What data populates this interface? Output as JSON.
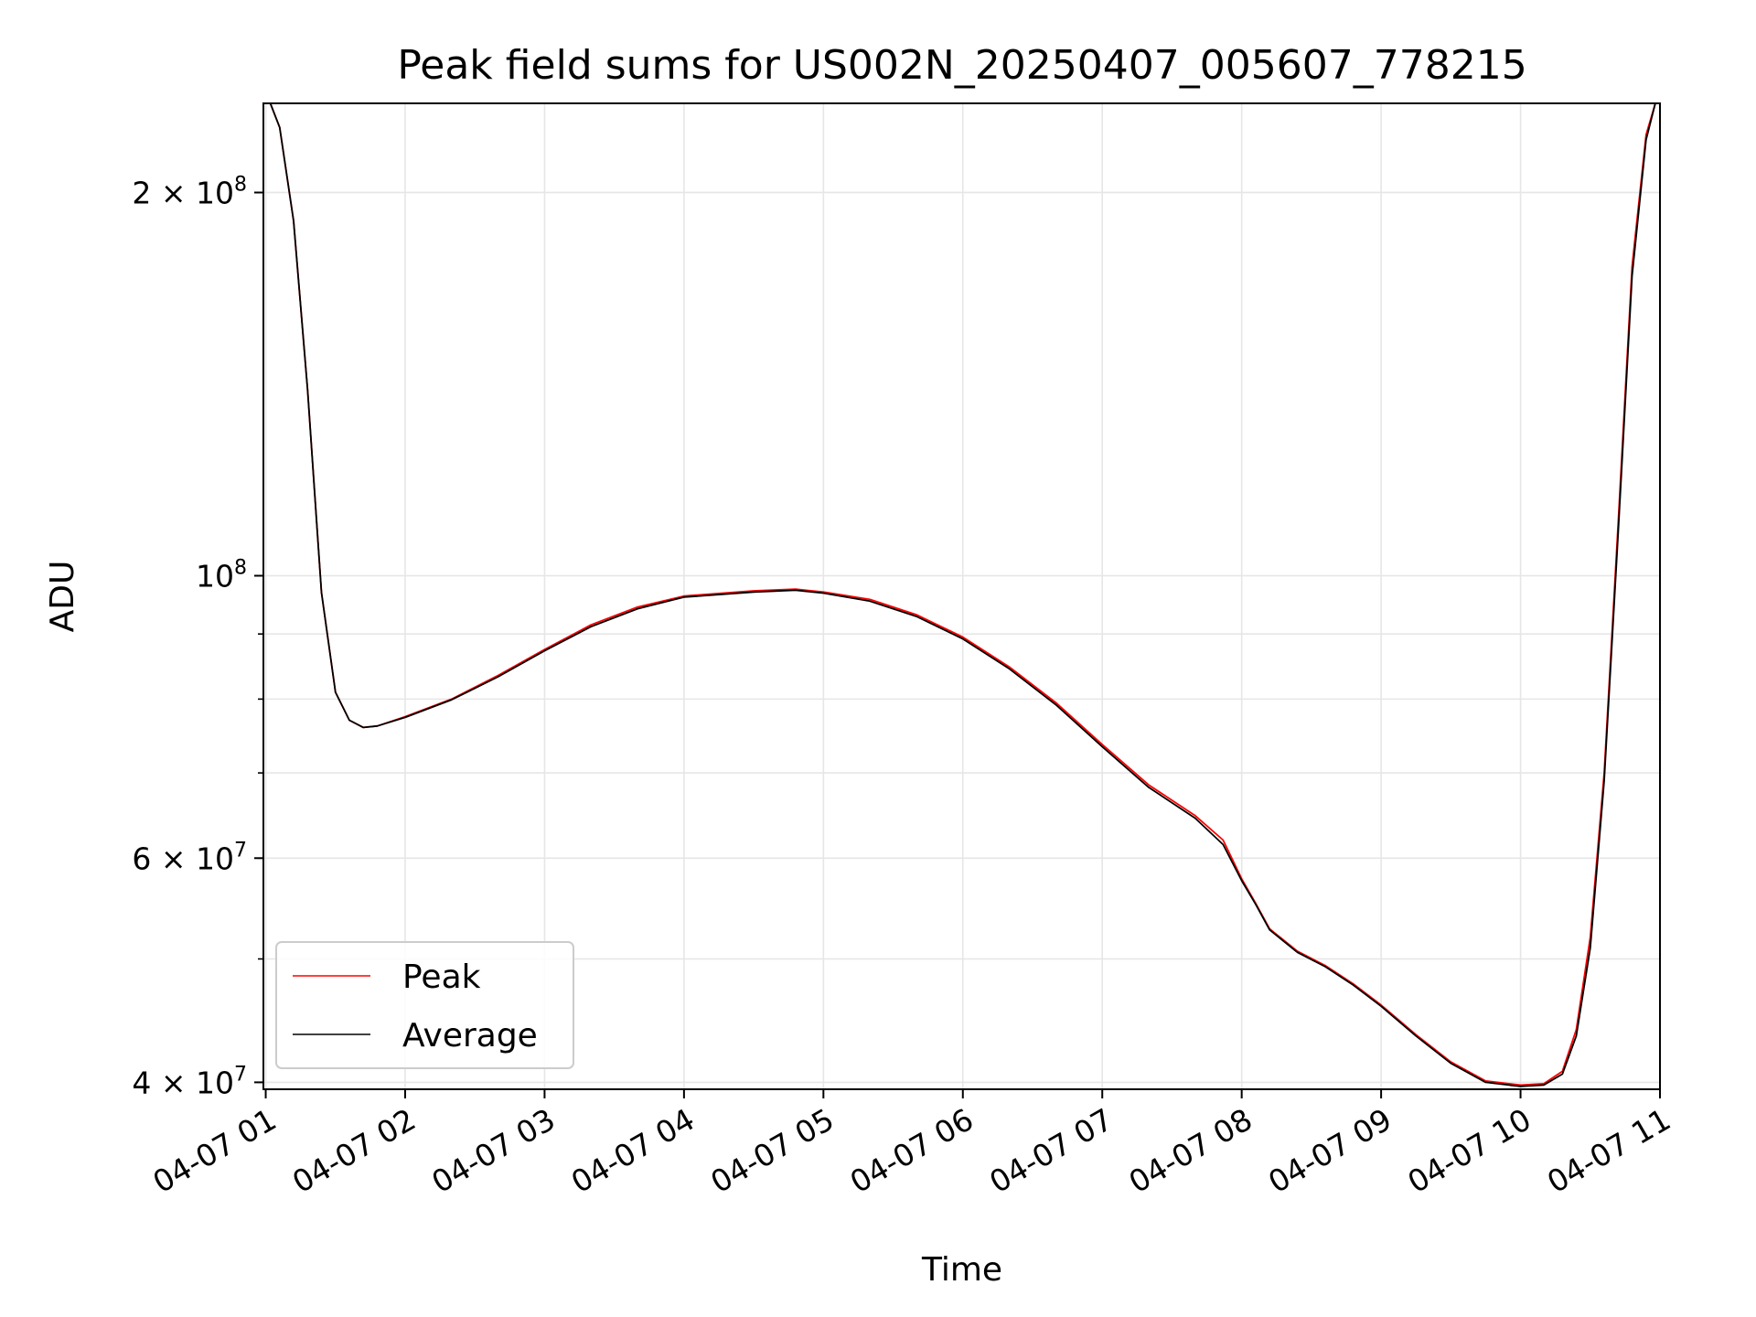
{
  "chart_data": {
    "type": "line",
    "title": "Peak field sums for US002N_20250407_005607_778215",
    "xlabel": "Time",
    "ylabel": "ADU",
    "y_scale": "log",
    "grid": true,
    "legend_placement": "lower-left",
    "xlim": [
      "2025-04-07 00:59",
      "2025-04-07 11:00"
    ],
    "ylim": [
      39500000,
      235000000
    ],
    "x_ticks": [
      "04-07 01",
      "04-07 02",
      "04-07 03",
      "04-07 04",
      "04-07 05",
      "04-07 06",
      "04-07 07",
      "04-07 08",
      "04-07 09",
      "04-07 10",
      "04-07 11"
    ],
    "x_tick_values": [
      "2025-04-07 01:00",
      "2025-04-07 02:00",
      "2025-04-07 03:00",
      "2025-04-07 04:00",
      "2025-04-07 05:00",
      "2025-04-07 06:00",
      "2025-04-07 07:00",
      "2025-04-07 08:00",
      "2025-04-07 09:00",
      "2025-04-07 10:00",
      "2025-04-07 11:00"
    ],
    "y_ticks_major": [
      {
        "value": 40000000,
        "label_base": "4 × 10",
        "label_exp": "7"
      },
      {
        "value": 60000000,
        "label_base": "6 × 10",
        "label_exp": "7"
      },
      {
        "value": 100000000,
        "label_base": "10",
        "label_exp": "8"
      },
      {
        "value": 200000000,
        "label_base": "2 × 10",
        "label_exp": "8"
      }
    ],
    "y_gridlines": [
      40000000,
      50000000,
      60000000,
      70000000,
      80000000,
      90000000,
      100000000,
      200000000
    ],
    "series": [
      {
        "name": "Peak",
        "color": "#ff0000",
        "x": [
          "2025-04-07 01:02",
          "2025-04-07 01:06",
          "2025-04-07 01:12",
          "2025-04-07 01:18",
          "2025-04-07 01:24",
          "2025-04-07 01:30",
          "2025-04-07 01:36",
          "2025-04-07 01:42",
          "2025-04-07 01:48",
          "2025-04-07 02:00",
          "2025-04-07 02:20",
          "2025-04-07 02:40",
          "2025-04-07 03:00",
          "2025-04-07 03:20",
          "2025-04-07 03:40",
          "2025-04-07 04:00",
          "2025-04-07 04:30",
          "2025-04-07 04:48",
          "2025-04-07 05:00",
          "2025-04-07 05:20",
          "2025-04-07 05:40",
          "2025-04-07 06:00",
          "2025-04-07 06:20",
          "2025-04-07 06:40",
          "2025-04-07 07:00",
          "2025-04-07 07:20",
          "2025-04-07 07:40",
          "2025-04-07 07:52",
          "2025-04-07 08:00",
          "2025-04-07 08:06",
          "2025-04-07 08:12",
          "2025-04-07 08:24",
          "2025-04-07 08:36",
          "2025-04-07 08:48",
          "2025-04-07 09:00",
          "2025-04-07 09:15",
          "2025-04-07 09:30",
          "2025-04-07 09:45",
          "2025-04-07 10:00",
          "2025-04-07 10:10",
          "2025-04-07 10:18",
          "2025-04-07 10:24",
          "2025-04-07 10:30",
          "2025-04-07 10:36",
          "2025-04-07 10:42",
          "2025-04-07 10:48",
          "2025-04-07 10:54",
          "2025-04-07 10:58"
        ],
        "y": [
          235000000,
          225000000,
          190000000,
          140000000,
          97000000,
          81000000,
          77000000,
          76000000,
          76200000,
          77500000,
          80000000,
          83500000,
          87500000,
          91500000,
          94500000,
          96400000,
          97300000,
          97600000,
          97100000,
          95800000,
          93200000,
          89500000,
          84800000,
          79500000,
          73700000,
          68500000,
          64800000,
          62000000,
          57800000,
          55300000,
          52800000,
          50700000,
          49400000,
          47800000,
          46000000,
          43600000,
          41500000,
          40100000,
          39800000,
          39900000,
          40800000,
          44000000,
          52000000,
          70000000,
          110000000,
          175000000,
          222000000,
          235000000
        ]
      },
      {
        "name": "Average",
        "color": "#000000",
        "x": [
          "2025-04-07 01:02",
          "2025-04-07 01:06",
          "2025-04-07 01:12",
          "2025-04-07 01:18",
          "2025-04-07 01:24",
          "2025-04-07 01:30",
          "2025-04-07 01:36",
          "2025-04-07 01:42",
          "2025-04-07 01:48",
          "2025-04-07 02:00",
          "2025-04-07 02:20",
          "2025-04-07 02:40",
          "2025-04-07 03:00",
          "2025-04-07 03:20",
          "2025-04-07 03:40",
          "2025-04-07 04:00",
          "2025-04-07 04:30",
          "2025-04-07 04:48",
          "2025-04-07 05:00",
          "2025-04-07 05:20",
          "2025-04-07 05:40",
          "2025-04-07 06:00",
          "2025-04-07 06:20",
          "2025-04-07 06:40",
          "2025-04-07 07:00",
          "2025-04-07 07:20",
          "2025-04-07 07:40",
          "2025-04-07 07:52",
          "2025-04-07 08:00",
          "2025-04-07 08:06",
          "2025-04-07 08:12",
          "2025-04-07 08:24",
          "2025-04-07 08:36",
          "2025-04-07 08:48",
          "2025-04-07 09:00",
          "2025-04-07 09:15",
          "2025-04-07 09:30",
          "2025-04-07 09:45",
          "2025-04-07 10:00",
          "2025-04-07 10:10",
          "2025-04-07 10:18",
          "2025-04-07 10:24",
          "2025-04-07 10:30",
          "2025-04-07 10:36",
          "2025-04-07 10:42",
          "2025-04-07 10:48",
          "2025-04-07 10:54",
          "2025-04-07 10:58"
        ],
        "y": [
          235000000,
          225000000,
          190000000,
          140000000,
          97000000,
          81000000,
          77000000,
          76000000,
          76200000,
          77400000,
          79900000,
          83300000,
          87300000,
          91200000,
          94200000,
          96200000,
          97100000,
          97400000,
          96900000,
          95500000,
          92900000,
          89200000,
          84500000,
          79200000,
          73400000,
          68200000,
          64500000,
          61500000,
          57600000,
          55200000,
          52700000,
          50600000,
          49300000,
          47700000,
          45900000,
          43500000,
          41400000,
          40000000,
          39700000,
          39800000,
          40600000,
          43500000,
          51000000,
          69000000,
          108000000,
          172000000,
          220000000,
          235000000
        ]
      }
    ]
  }
}
